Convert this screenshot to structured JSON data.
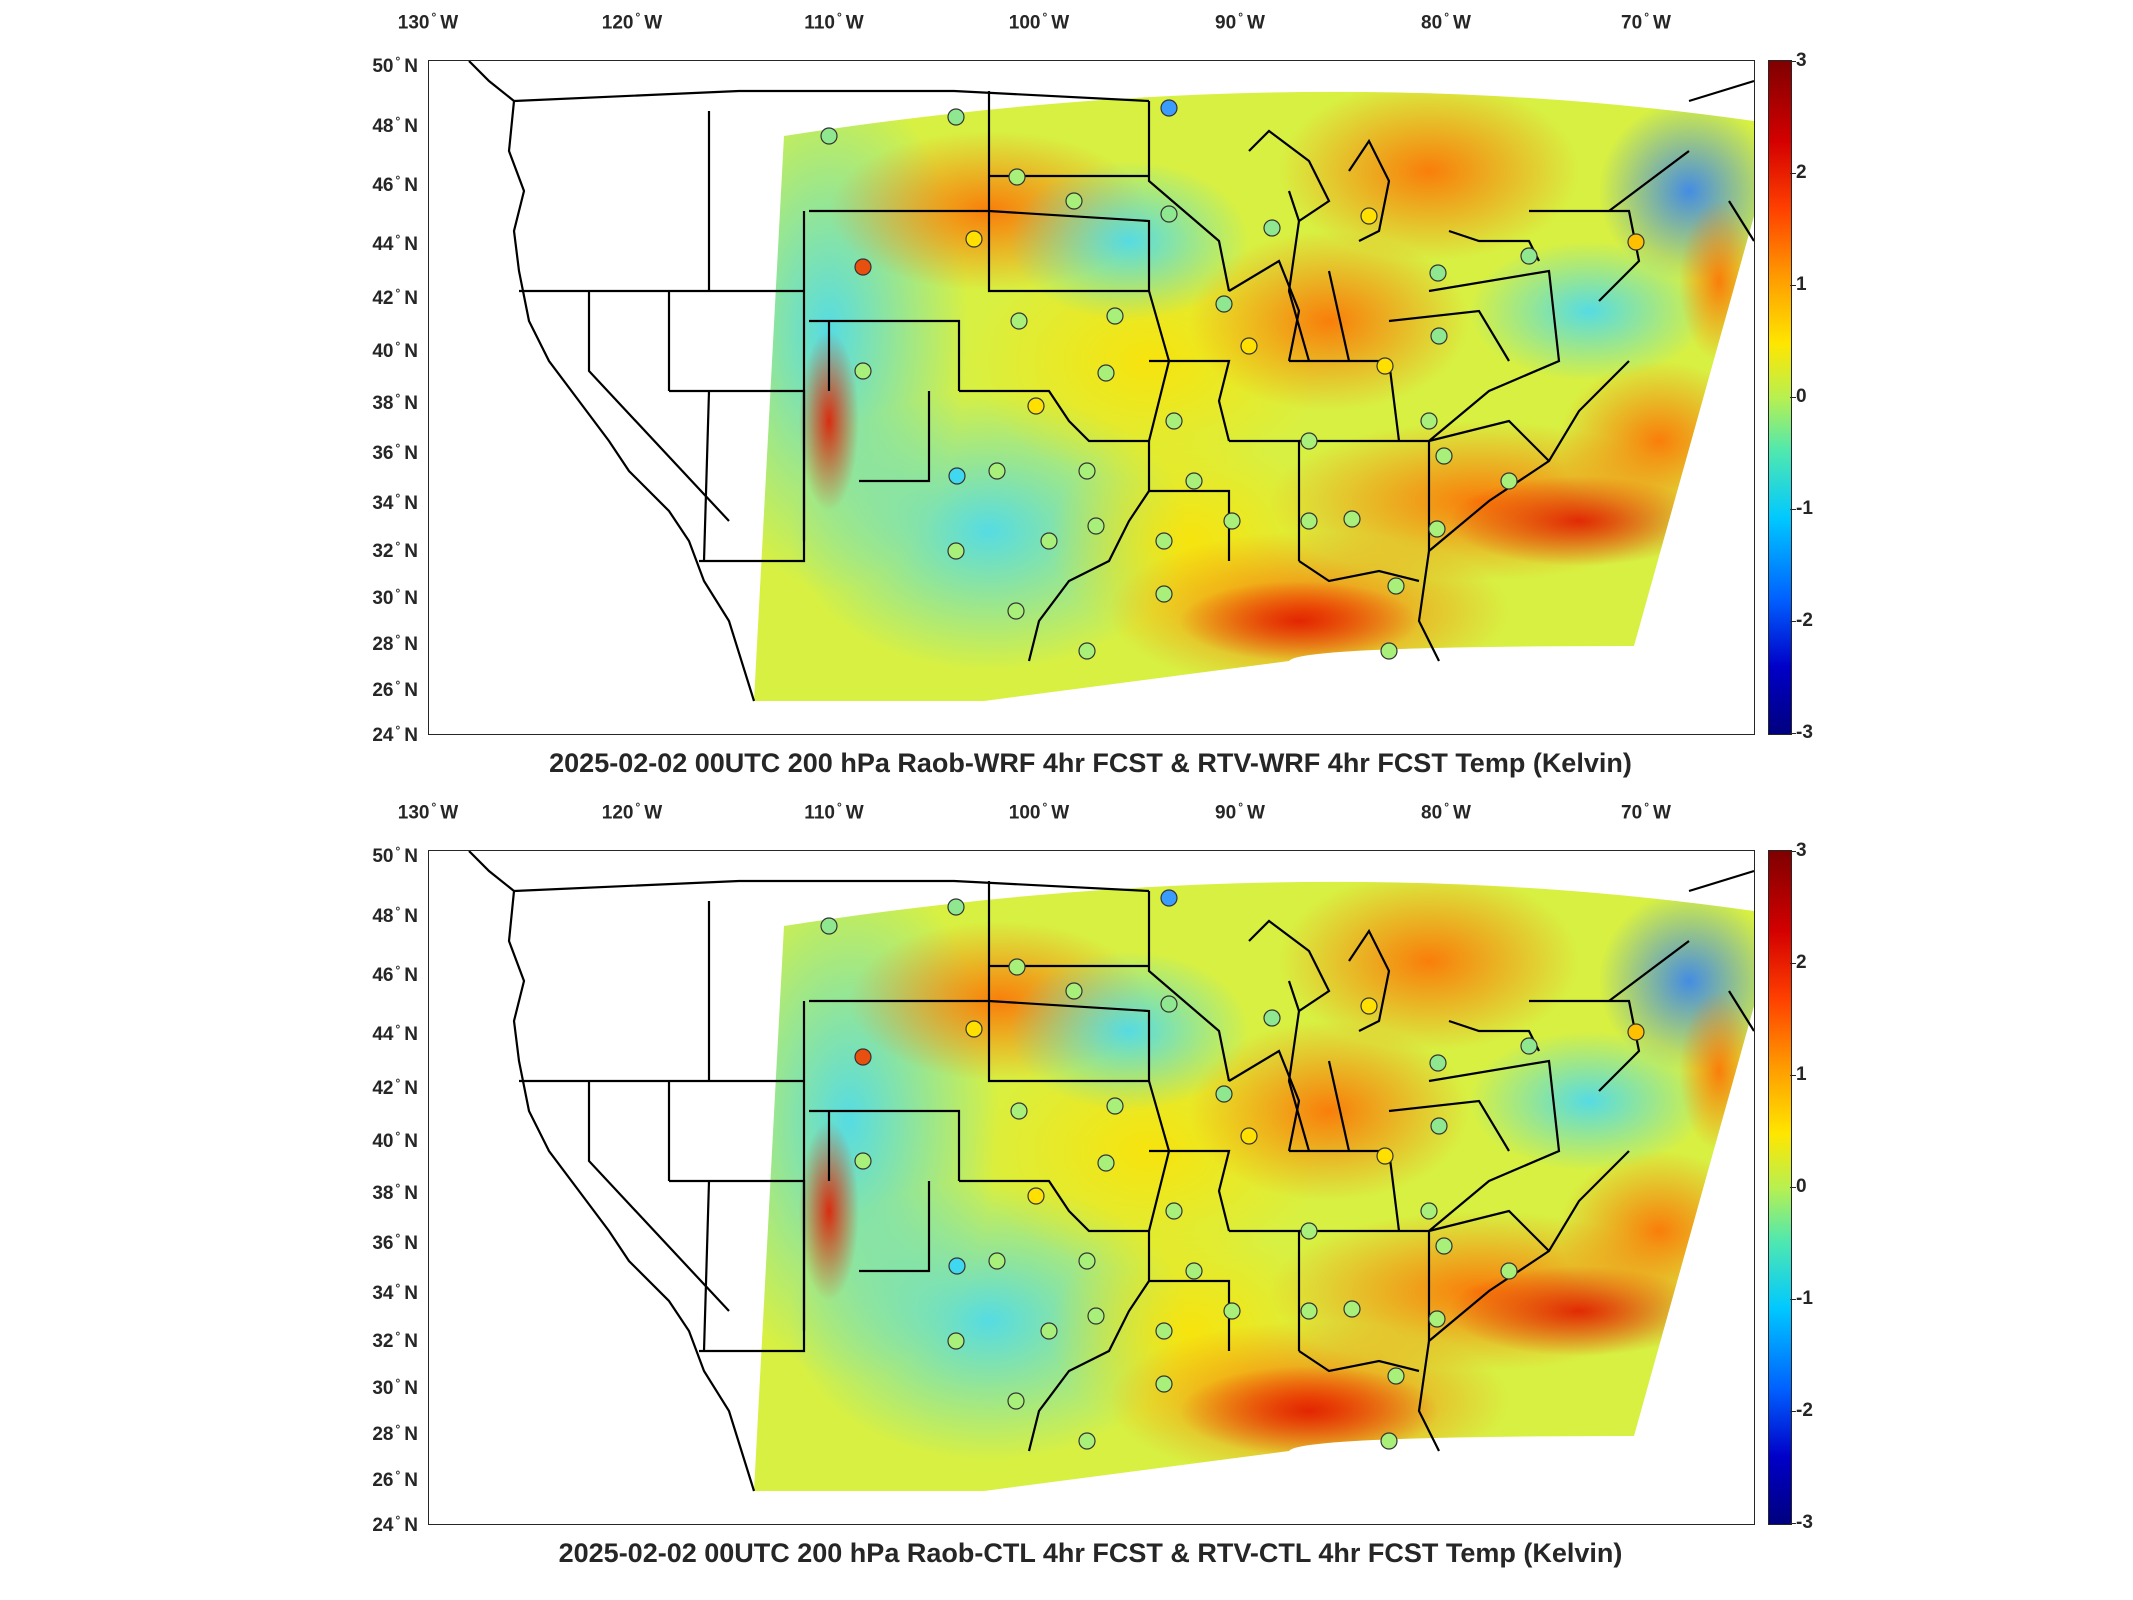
{
  "figure": {
    "panels": [
      {
        "title": "2025-02-02 00UTC 200 hPa Raob-WRF 4hr FCST & RTV-WRF 4hr FCST Temp (Kelvin)",
        "colorbar_ticks": [
          "3",
          "2",
          "1",
          "0",
          "-1",
          "-2",
          "-3"
        ]
      },
      {
        "title": "2025-02-02 00UTC 200 hPa Raob-CTL 4hr FCST & RTV-CTL 4hr FCST Temp (Kelvin)",
        "colorbar_ticks": [
          "3",
          "2",
          "1",
          "0",
          "-1",
          "-2",
          "-3"
        ]
      }
    ],
    "lon_labels": [
      {
        "num": "130",
        "hem": "W"
      },
      {
        "num": "120",
        "hem": "W"
      },
      {
        "num": "110",
        "hem": "W"
      },
      {
        "num": "100",
        "hem": "W"
      },
      {
        "num": "90",
        "hem": "W"
      },
      {
        "num": "80",
        "hem": "W"
      },
      {
        "num": "70",
        "hem": "W"
      }
    ],
    "lat_labels": [
      {
        "num": "50",
        "hem": "N"
      },
      {
        "num": "48",
        "hem": "N"
      },
      {
        "num": "46",
        "hem": "N"
      },
      {
        "num": "44",
        "hem": "N"
      },
      {
        "num": "42",
        "hem": "N"
      },
      {
        "num": "40",
        "hem": "N"
      },
      {
        "num": "38",
        "hem": "N"
      },
      {
        "num": "36",
        "hem": "N"
      },
      {
        "num": "34",
        "hem": "N"
      },
      {
        "num": "32",
        "hem": "N"
      },
      {
        "num": "30",
        "hem": "N"
      },
      {
        "num": "28",
        "hem": "N"
      },
      {
        "num": "26",
        "hem": "N"
      },
      {
        "num": "24",
        "hem": "N"
      }
    ],
    "colormap": [
      "#00007f",
      "#0000ff",
      "#00bfff",
      "#3fffbf",
      "#ffff00",
      "#ff7f00",
      "#ff0000",
      "#7f0000"
    ],
    "colorbar_range": [
      -3,
      3
    ]
  }
}
